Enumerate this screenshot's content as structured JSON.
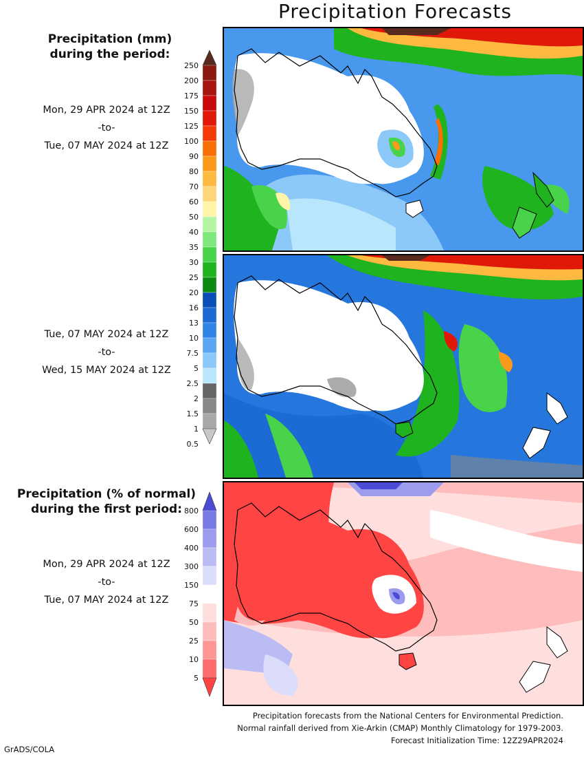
{
  "page": {
    "title": "Precipitation Forecasts",
    "credit": "GrADS/COLA"
  },
  "precip_legend": {
    "header_line1": "Precipitation (mm)",
    "header_line2": "during the period:",
    "levels": [
      "250",
      "200",
      "175",
      "150",
      "125",
      "100",
      "90",
      "80",
      "70",
      "60",
      "50",
      "40",
      "35",
      "30",
      "25",
      "20",
      "16",
      "13",
      "10",
      "7.5",
      "5",
      "2.5",
      "2",
      "1.5",
      "1",
      "0.5"
    ],
    "colors": [
      "#5a2a1e",
      "#8b1a10",
      "#a81510",
      "#c80a0a",
      "#e01808",
      "#f53a06",
      "#fa6e06",
      "#fb9a1a",
      "#fdb940",
      "#ffd57a",
      "#fff4a8",
      "#b4f5a4",
      "#7ee87c",
      "#48d34a",
      "#1fb31f",
      "#0c8a12",
      "#0a4fb8",
      "#1c6ad4",
      "#2f84e6",
      "#5aa6f2",
      "#8cc8f8",
      "#b8e6fc",
      "#666666",
      "#888888",
      "#a8a8a8",
      "#c8c8c8"
    ]
  },
  "pct_legend": {
    "header_line1": "Precipitation (% of normal)",
    "header_line2": "during the first period:",
    "levels": [
      "800",
      "600",
      "400",
      "300",
      "150",
      "75",
      "50",
      "25",
      "10",
      "5"
    ],
    "colors": [
      "#4b4bd6",
      "#7a7ae4",
      "#9c9cee",
      "#bcbcf5",
      "#dcdcfb",
      "#ffffff",
      "#ffdede",
      "#ffbcbc",
      "#ff9696",
      "#ff6a6a",
      "#ff4444"
    ]
  },
  "periods": [
    {
      "start": "Mon, 29 APR 2024 at 12Z",
      "sep": "-to-",
      "end": "Tue, 07 MAY 2024 at 12Z"
    },
    {
      "start": "Tue, 07 MAY 2024 at 12Z",
      "sep": "-to-",
      "end": "Wed, 15 MAY 2024 at 12Z"
    },
    {
      "start": "Mon, 29 APR 2024 at 12Z",
      "sep": "-to-",
      "end": "Tue, 07 MAY 2024 at 12Z"
    }
  ],
  "footer": {
    "line1": "Precipitation forecasts from the National Centers for Environmental Prediction.",
    "line2": "Normal rainfall derived from Xie-Arkin (CMAP) Monthly Climatology for 1979-2003.",
    "line3": "Forecast Initialization Time: 12Z29APR2024"
  }
}
